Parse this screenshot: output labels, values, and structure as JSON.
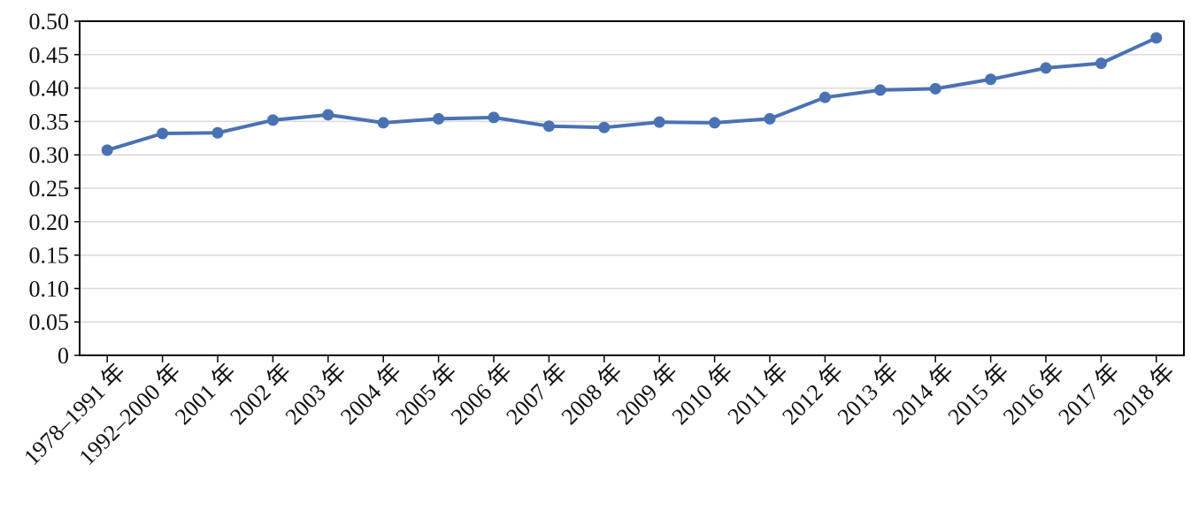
{
  "chart_data": {
    "type": "line",
    "categories": [
      "1978–1991 年",
      "1992–2000 年",
      "2001 年",
      "2002 年",
      "2003 年",
      "2004 年",
      "2005 年",
      "2006 年",
      "2007 年",
      "2008 年",
      "2009 年",
      "2010 年",
      "2011 年",
      "2012 年",
      "2013 年",
      "2014 年",
      "2015 年",
      "2016 年",
      "2017 年",
      "2018 年"
    ],
    "values": [
      0.307,
      0.332,
      0.333,
      0.352,
      0.36,
      0.348,
      0.354,
      0.356,
      0.343,
      0.341,
      0.349,
      0.348,
      0.354,
      0.386,
      0.397,
      0.399,
      0.413,
      0.43,
      0.437,
      0.475
    ],
    "color": "#4a72b3",
    "ylim": [
      0,
      0.5
    ],
    "yticks": [
      0,
      0.05,
      {
        "value": 0.1,
        "label": "0.10"
      },
      0.15,
      {
        "value": 0.2,
        "label": "0.20"
      },
      0.25,
      {
        "value": 0.3,
        "label": "0.30"
      },
      0.35,
      {
        "value": 0.4,
        "label": "0.40"
      },
      0.45,
      {
        "value": 0.5,
        "label": "0.50"
      }
    ],
    "grid": true
  }
}
